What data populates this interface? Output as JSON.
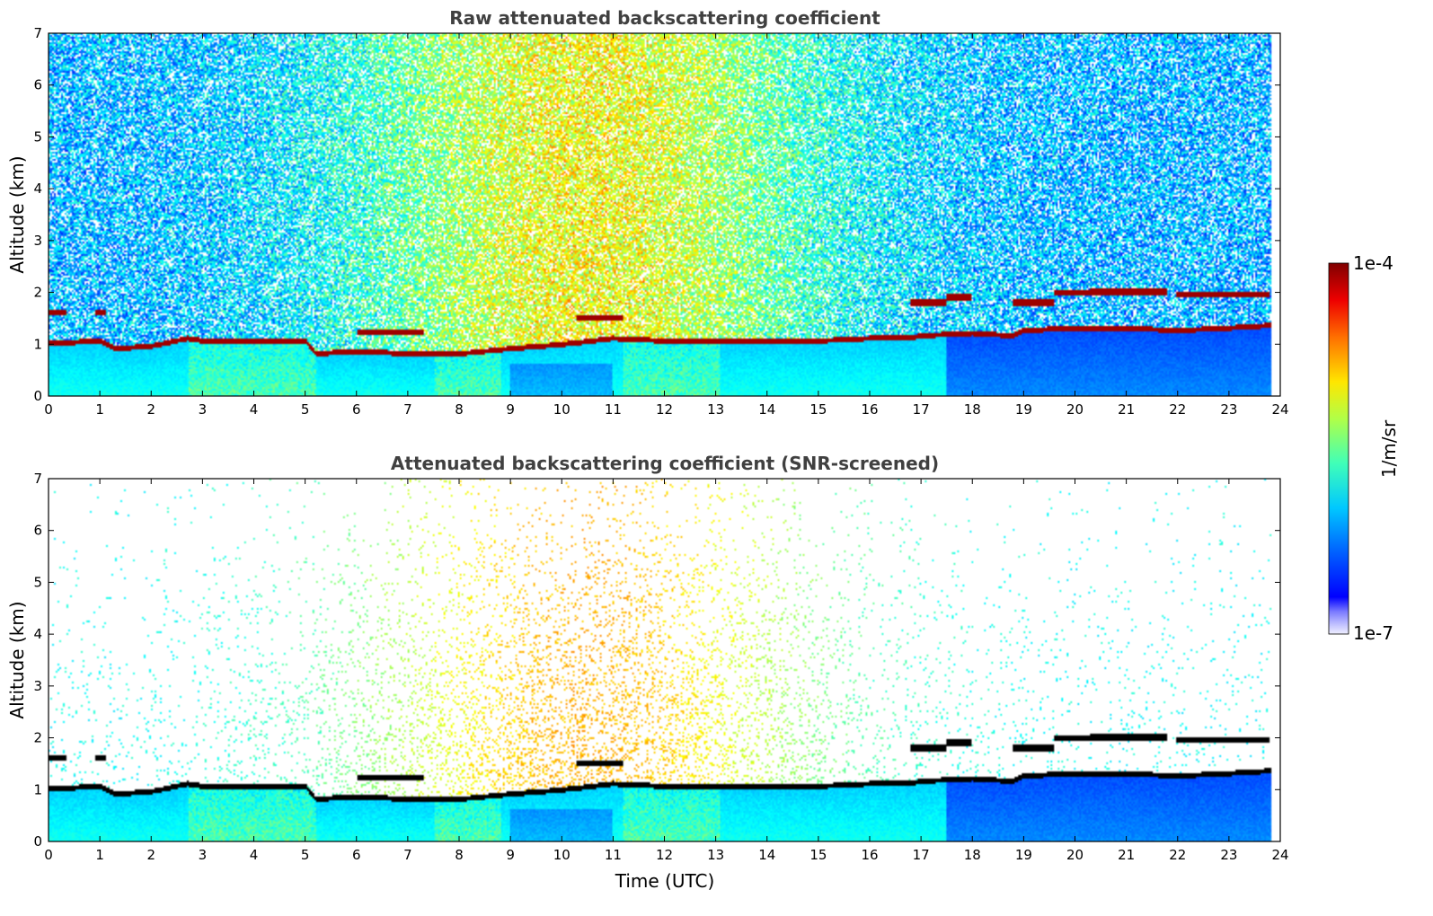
{
  "chart_data": [
    {
      "type": "heatmap",
      "title": "Raw attenuated backscattering coefficient",
      "xlabel": "",
      "ylabel": "Altitude (km)",
      "xlim": [
        0,
        24
      ],
      "ylim": [
        0,
        7
      ],
      "xticks": [
        "0",
        "1",
        "2",
        "3",
        "4",
        "5",
        "6",
        "7",
        "8",
        "9",
        "10",
        "11",
        "12",
        "13",
        "14",
        "15",
        "16",
        "17",
        "18",
        "19",
        "20",
        "21",
        "22",
        "23",
        "24"
      ],
      "yticks": [
        "0",
        "1",
        "2",
        "3",
        "4",
        "5",
        "6",
        "7"
      ],
      "screened": false,
      "boundary_layer_km": [
        [
          0,
          1.0
        ],
        [
          1,
          1.05
        ],
        [
          1.3,
          0.9
        ],
        [
          2,
          0.95
        ],
        [
          2.7,
          1.1
        ],
        [
          3,
          1.05
        ],
        [
          4,
          1.05
        ],
        [
          5,
          1.05
        ],
        [
          5.2,
          0.8
        ],
        [
          6,
          0.85
        ],
        [
          7,
          0.8
        ],
        [
          8,
          0.8
        ],
        [
          9,
          0.9
        ],
        [
          10,
          0.98
        ],
        [
          11,
          1.1
        ],
        [
          12,
          1.05
        ],
        [
          13,
          1.05
        ],
        [
          14,
          1.05
        ],
        [
          15,
          1.05
        ],
        [
          16,
          1.1
        ],
        [
          16.8,
          1.1
        ],
        [
          17,
          1.15
        ],
        [
          18,
          1.2
        ],
        [
          18.8,
          1.15
        ],
        [
          19,
          1.25
        ],
        [
          20,
          1.3
        ],
        [
          21,
          1.3
        ],
        [
          22,
          1.25
        ],
        [
          23,
          1.3
        ],
        [
          23.8,
          1.35
        ]
      ],
      "elevated_layers_km": [
        {
          "x": [
            0,
            0.35
          ],
          "y": 1.6
        },
        {
          "x": [
            0.9,
            1.1
          ],
          "y": 1.6
        },
        {
          "x": [
            6,
            7.3
          ],
          "y": 1.22
        },
        {
          "x": [
            10.3,
            11.2
          ],
          "y": 1.5
        },
        {
          "x": [
            16.8,
            17.5
          ],
          "y": 1.8
        },
        {
          "x": [
            17.5,
            18
          ],
          "y": 1.9
        },
        {
          "x": [
            18.8,
            19.6
          ],
          "y": 1.8
        },
        {
          "x": [
            19.6,
            20.3
          ],
          "y": 1.98
        },
        {
          "x": [
            20.3,
            21.8
          ],
          "y": 2.0
        },
        {
          "x": [
            22,
            23.8
          ],
          "y": 1.95
        }
      ]
    },
    {
      "type": "heatmap",
      "title": "Attenuated backscattering coefficient (SNR-screened)",
      "xlabel": "Time (UTC)",
      "ylabel": "Altitude (km)",
      "xlim": [
        0,
        24
      ],
      "ylim": [
        0,
        7
      ],
      "xticks": [
        "0",
        "1",
        "2",
        "3",
        "4",
        "5",
        "6",
        "7",
        "8",
        "9",
        "10",
        "11",
        "12",
        "13",
        "14",
        "15",
        "16",
        "17",
        "18",
        "19",
        "20",
        "21",
        "22",
        "23",
        "24"
      ],
      "yticks": [
        "0",
        "1",
        "2",
        "3",
        "4",
        "5",
        "6",
        "7"
      ],
      "screened": true
    }
  ],
  "colorbar": {
    "label": "1/m/sr",
    "max_label": "1e-4",
    "min_label": "1e-7",
    "scale": "log",
    "range": [
      1e-07,
      0.0001
    ],
    "colormap": "jet"
  }
}
